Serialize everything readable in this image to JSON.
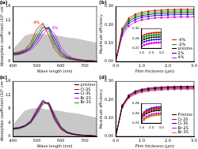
{
  "chart_data": [
    {
      "type": "line",
      "title": "(a)",
      "xlabel": "Wave length (nm)",
      "ylabel": "Absorption coefficient (10⁵ cm⁻¹)",
      "x": [
        400,
        425,
        450,
        475,
        500,
        525,
        550,
        575,
        600,
        625,
        650,
        675,
        700,
        725,
        750
      ],
      "xlim": [
        400,
        750
      ],
      "xticks": [
        400,
        500,
        600,
        700
      ],
      "ylim": [
        0,
        16
      ],
      "yticks": [
        0,
        4,
        8,
        12,
        16
      ],
      "annotations": [
        "-4%",
        "4%"
      ],
      "series": [
        {
          "name": "-4%",
          "color": "#e00000",
          "values": [
            2.5,
            2.8,
            3.5,
            5.5,
            9.5,
            11.2,
            7.5,
            3.5,
            1.5,
            0.8,
            0.5,
            0.3,
            0.2,
            0.2,
            0.1
          ]
        },
        {
          "name": "-2%",
          "color": "#00a000",
          "values": [
            2.3,
            2.6,
            3.2,
            4.8,
            8.2,
            10.8,
            8.8,
            4.5,
            2.0,
            1.0,
            0.6,
            0.4,
            0.3,
            0.2,
            0.1
          ]
        },
        {
          "name": "pristine",
          "color": "#000000",
          "values": [
            2.2,
            2.4,
            3.0,
            4.2,
            7.0,
            10.0,
            9.6,
            5.5,
            2.5,
            1.2,
            0.7,
            0.4,
            0.3,
            0.2,
            0.1
          ]
        },
        {
          "name": "2%",
          "color": "#0000e0",
          "values": [
            2.0,
            2.2,
            2.8,
            3.8,
            6.0,
            9.0,
            10.0,
            6.8,
            3.2,
            1.5,
            0.8,
            0.5,
            0.3,
            0.2,
            0.1
          ]
        },
        {
          "name": "4%",
          "color": "#e000e0",
          "values": [
            1.8,
            2.0,
            2.6,
            3.4,
            5.0,
            7.8,
            9.8,
            8.0,
            4.2,
            2.0,
            1.0,
            0.6,
            0.4,
            0.2,
            0.1
          ]
        },
        {
          "type": "area",
          "color": "#c8c8c8",
          "values": [
            3.5,
            5.5,
            7.5,
            8.0,
            8.2,
            8.0,
            7.8,
            7.6,
            7.4,
            7.0,
            6.8,
            6.6,
            6.2,
            5.8,
            5.5
          ]
        }
      ]
    },
    {
      "type": "line",
      "title": "(b)",
      "xlabel": "Film thickness (μm)",
      "ylabel": "Maximum efficiency",
      "legend": "lower right",
      "x": [
        0,
        0.25,
        0.5,
        0.75,
        1.0,
        1.25,
        1.5,
        1.75,
        2.0,
        2.25,
        2.5,
        2.75,
        3.0
      ],
      "xlim": [
        0,
        3
      ],
      "xticks": [
        {
          "value": 0,
          "label": "0.0"
        },
        {
          "value": 1,
          "label": "1.0"
        },
        {
          "value": 2,
          "label": "2.0"
        },
        {
          "value": 3,
          "label": "3.0"
        }
      ],
      "ylim": [
        0,
        0.3
      ],
      "yticks": [
        {
          "value": 0,
          "label": "0.00"
        },
        {
          "value": 0.1,
          "label": "0.10"
        },
        {
          "value": 0.2,
          "label": "0.20"
        },
        {
          "value": 0.3,
          "label": "0.30"
        }
      ],
      "inset": {
        "xlim": [
          1,
          3
        ],
        "xticks": [
          {
            "value": 1,
            "label": "1.0"
          },
          {
            "value": 2,
            "label": "2.0"
          },
          {
            "value": 3,
            "label": "3.0"
          }
        ],
        "ylim": [
          0.22,
          0.3
        ],
        "yticks": [
          0.22,
          0.26,
          {
            "value": 0.3,
            "label": "0.30"
          }
        ]
      },
      "series": [
        {
          "name": "-4%",
          "color": "#e00000",
          "marker": "square",
          "values": [
            0,
            0.18,
            0.235,
            0.258,
            0.268,
            0.274,
            0.278,
            0.28,
            0.282,
            0.283,
            0.284,
            0.284,
            0.285
          ]
        },
        {
          "name": "-2%",
          "color": "#00a000",
          "marker": "circle",
          "values": [
            0,
            0.172,
            0.226,
            0.249,
            0.259,
            0.265,
            0.269,
            0.271,
            0.273,
            0.274,
            0.275,
            0.275,
            0.276
          ]
        },
        {
          "name": "pristine",
          "color": "#000000",
          "marker": "triangle",
          "values": [
            0,
            0.165,
            0.218,
            0.24,
            0.25,
            0.256,
            0.26,
            0.262,
            0.264,
            0.265,
            0.266,
            0.266,
            0.267
          ]
        },
        {
          "name": "2%",
          "color": "#0000e0",
          "marker": "diamond",
          "values": [
            0,
            0.155,
            0.207,
            0.229,
            0.24,
            0.246,
            0.25,
            0.252,
            0.254,
            0.255,
            0.256,
            0.256,
            0.257
          ]
        },
        {
          "name": "4%",
          "color": "#e000e0",
          "marker": "circle",
          "values": [
            0,
            0.142,
            0.193,
            0.216,
            0.227,
            0.233,
            0.237,
            0.239,
            0.241,
            0.242,
            0.243,
            0.243,
            0.244
          ]
        }
      ]
    },
    {
      "type": "line",
      "title": "(c)",
      "xlabel": "Wave length (nm)",
      "ylabel": "Absorption coefficient (10⁵ cm⁻¹)",
      "legend": "upper right",
      "x": [
        400,
        425,
        450,
        475,
        500,
        525,
        550,
        575,
        600,
        625,
        650,
        675,
        700,
        725,
        750
      ],
      "xlim": [
        400,
        750
      ],
      "xticks": [
        400,
        500,
        600,
        700
      ],
      "ylim": [
        0,
        16
      ],
      "yticks": [
        0,
        4,
        8,
        12,
        16
      ],
      "series": [
        {
          "name": "pristine",
          "color": "#000000",
          "values": [
            2.2,
            2.4,
            3.0,
            4.2,
            7.0,
            10.0,
            9.6,
            5.5,
            2.5,
            1.2,
            0.7,
            0.4,
            0.3,
            0.2,
            0.1
          ]
        },
        {
          "name": "Cl-2S",
          "color": "#e00000",
          "values": [
            2.3,
            2.5,
            3.1,
            4.4,
            7.4,
            10.3,
            9.3,
            5.0,
            2.2,
            1.1,
            0.6,
            0.4,
            0.3,
            0.2,
            0.1
          ]
        },
        {
          "name": "Cl-3S",
          "color": "#0000e0",
          "values": [
            2.4,
            2.6,
            3.2,
            4.6,
            7.8,
            10.6,
            9.0,
            4.7,
            2.1,
            1.0,
            0.6,
            0.4,
            0.3,
            0.2,
            0.1
          ]
        },
        {
          "name": "Br-2S",
          "color": "#e000e0",
          "values": [
            2.1,
            2.3,
            2.9,
            4.0,
            6.6,
            9.6,
            9.8,
            6.0,
            2.8,
            1.3,
            0.7,
            0.5,
            0.3,
            0.2,
            0.1
          ]
        },
        {
          "name": "Br-3S",
          "color": "#00a000",
          "values": [
            2.0,
            2.2,
            2.8,
            3.9,
            6.3,
            9.3,
            9.9,
            6.4,
            3.0,
            1.4,
            0.8,
            0.5,
            0.3,
            0.2,
            0.1
          ]
        },
        {
          "type": "area",
          "color": "#c8c8c8",
          "values": [
            3.5,
            5.5,
            7.5,
            8.0,
            8.2,
            8.0,
            7.8,
            7.6,
            7.4,
            7.0,
            6.8,
            6.6,
            6.2,
            5.8,
            5.5
          ]
        }
      ]
    },
    {
      "type": "line",
      "title": "(d)",
      "xlabel": "Film thickness (μm)",
      "ylabel": "Maximum efficiency",
      "legend": "lower right",
      "x": [
        0,
        0.25,
        0.5,
        0.75,
        1.0,
        1.25,
        1.5,
        1.75,
        2.0,
        2.25,
        2.5,
        2.75,
        3.0
      ],
      "xlim": [
        0,
        3
      ],
      "xticks": [
        {
          "value": 0,
          "label": "0.0"
        },
        {
          "value": 1,
          "label": "1.0"
        },
        {
          "value": 2,
          "label": "2.0"
        },
        {
          "value": 3,
          "label": "3.0"
        }
      ],
      "ylim": [
        0,
        0.3
      ],
      "yticks": [
        {
          "value": 0,
          "label": "0.00"
        },
        {
          "value": 0.1,
          "label": "0.10"
        },
        {
          "value": 0.2,
          "label": "0.20"
        },
        {
          "value": 0.3,
          "label": "0.30"
        }
      ],
      "inset": {
        "xlim": [
          1,
          3
        ],
        "xticks": [
          {
            "value": 1,
            "label": "1.0"
          },
          {
            "value": 2,
            "label": "2.0"
          },
          {
            "value": 3,
            "label": "3.0"
          }
        ],
        "ylim": [
          0.24,
          0.28
        ],
        "yticks": [
          0.24,
          0.26,
          0.28
        ]
      },
      "series": [
        {
          "name": "Pristine",
          "color": "#000000",
          "marker": "square",
          "values": [
            0,
            0.165,
            0.218,
            0.24,
            0.25,
            0.256,
            0.26,
            0.262,
            0.264,
            0.265,
            0.266,
            0.266,
            0.267
          ]
        },
        {
          "name": "Cl-2S",
          "color": "#e00000",
          "marker": "circle",
          "values": [
            0,
            0.168,
            0.222,
            0.244,
            0.254,
            0.26,
            0.264,
            0.266,
            0.268,
            0.269,
            0.27,
            0.27,
            0.271
          ]
        },
        {
          "name": "Cl-3S",
          "color": "#0000e0",
          "marker": "triangle",
          "values": [
            0,
            0.17,
            0.225,
            0.247,
            0.257,
            0.263,
            0.267,
            0.269,
            0.271,
            0.272,
            0.273,
            0.273,
            0.274
          ]
        },
        {
          "name": "Br-2S",
          "color": "#e000e0",
          "marker": "diamond",
          "values": [
            0,
            0.16,
            0.212,
            0.234,
            0.244,
            0.25,
            0.254,
            0.256,
            0.258,
            0.259,
            0.26,
            0.26,
            0.261
          ]
        },
        {
          "name": "Br-3S",
          "color": "#c08000",
          "marker": "circle",
          "values": [
            0,
            0.158,
            0.209,
            0.231,
            0.241,
            0.247,
            0.251,
            0.253,
            0.255,
            0.256,
            0.257,
            0.257,
            0.258
          ]
        }
      ]
    }
  ]
}
